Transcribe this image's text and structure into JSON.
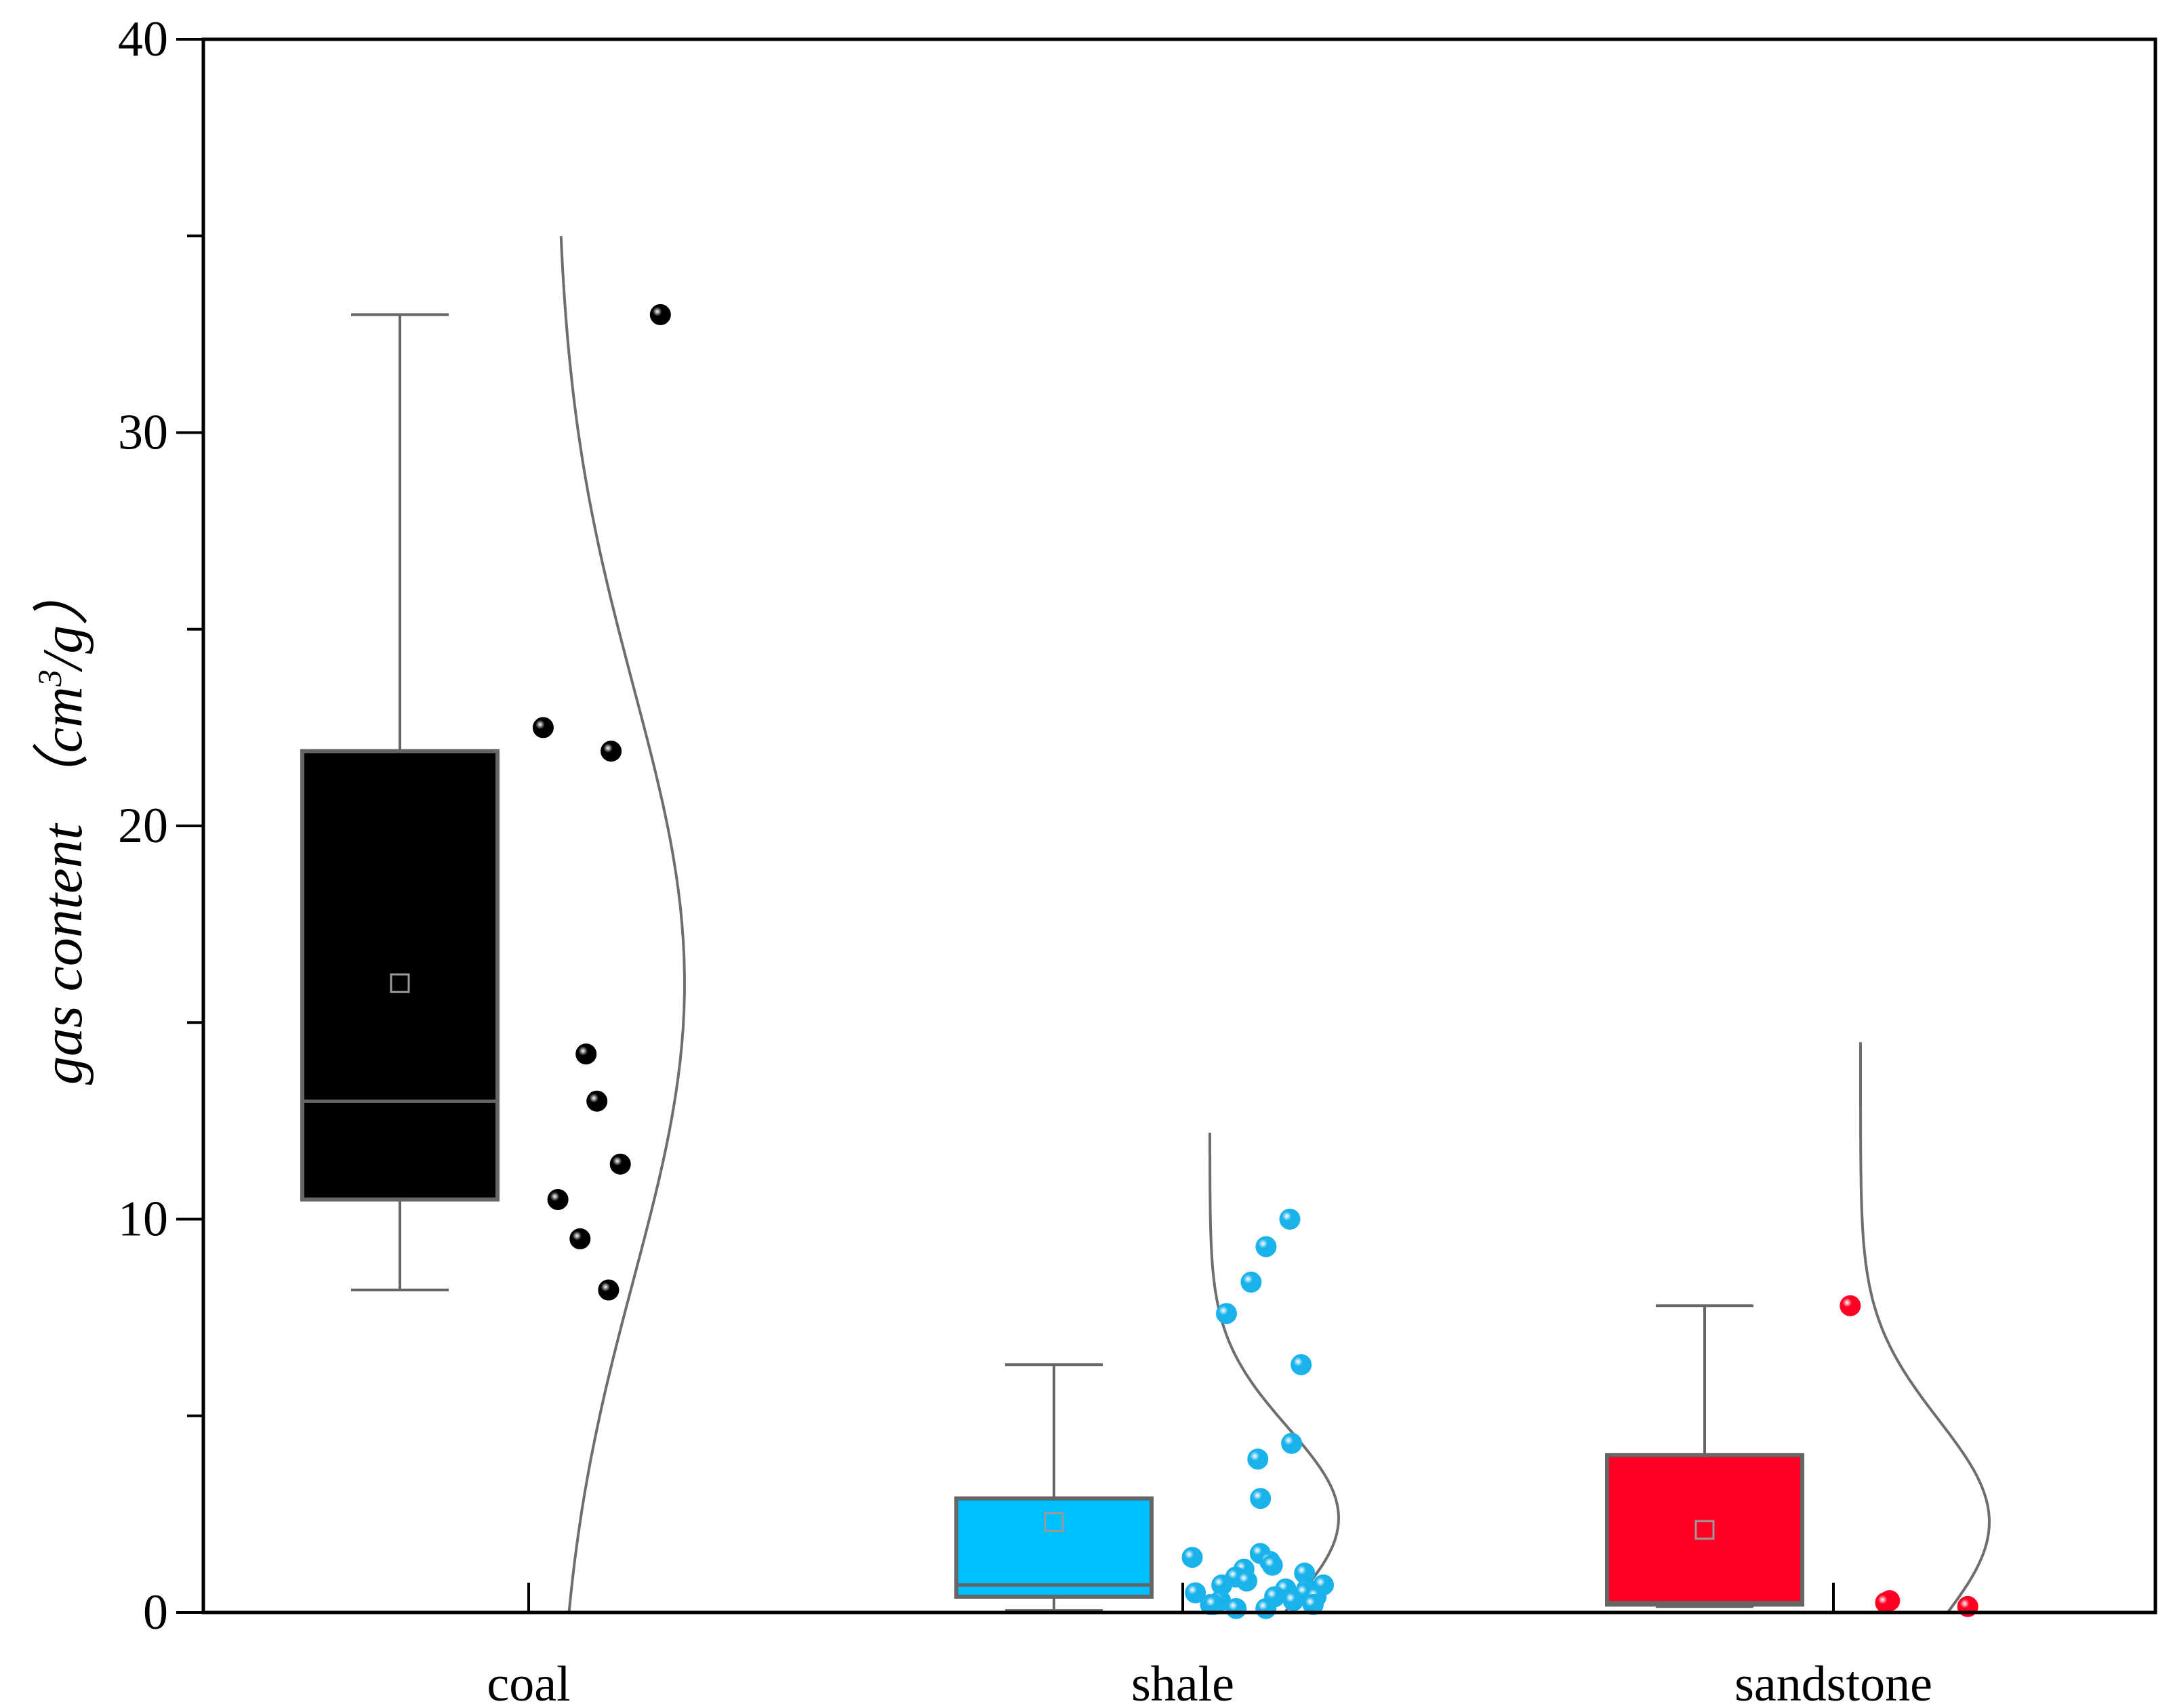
{
  "chart_data": {
    "type": "box",
    "ylabel": {
      "prefix": "gas content （cm",
      "superscript": "3",
      "suffix": "/g）"
    },
    "ylim": [
      0,
      40
    ],
    "yticks": [
      "0",
      "10",
      "20",
      "30",
      "40"
    ],
    "y_minor_step": 5,
    "grid": false,
    "legend": "none",
    "categories": [
      "coal",
      "shale",
      "sandstone"
    ],
    "series": [
      {
        "category": "coal",
        "color": "#000000",
        "point_color": "#000000",
        "box": {
          "whisker_low": 8.2,
          "q1": 10.5,
          "median": 13.0,
          "q3": 21.9,
          "whisker_high": 33.0,
          "mean": 16.0
        },
        "points": [
          33.0,
          22.5,
          21.9,
          14.2,
          13.0,
          11.4,
          10.5,
          9.5,
          8.2
        ],
        "curve": {
          "ymin": 0,
          "ymax": 35,
          "peak_y": 16.0,
          "sigma": 7.5
        }
      },
      {
        "category": "shale",
        "color": "#00bfff",
        "point_color": "#1ab2ea",
        "box": {
          "whisker_low": 0.05,
          "q1": 0.4,
          "median": 0.7,
          "q3": 2.9,
          "whisker_high": 6.3,
          "mean": 2.3
        },
        "points": [
          10.0,
          9.3,
          8.4,
          7.6,
          6.3,
          4.3,
          3.9,
          2.9,
          1.5,
          1.4,
          1.3,
          1.2,
          1.1,
          1.0,
          0.9,
          0.8,
          0.7,
          0.7,
          0.6,
          0.6,
          0.5,
          0.5,
          0.4,
          0.4,
          0.3,
          0.3,
          0.2,
          0.2,
          0.2,
          0.1,
          0.1
        ],
        "curve": {
          "ymin": 0,
          "ymax": 12.2,
          "peak_y": 2.4,
          "sigma": 2.3
        }
      },
      {
        "category": "sandstone",
        "color": "#ff0022",
        "point_color": "#ff0022",
        "box": {
          "whisker_low": 0.15,
          "q1": 0.2,
          "median": 0.25,
          "q3": 4.0,
          "whisker_high": 7.8,
          "mean": 2.1
        },
        "points": [
          7.8,
          0.3,
          0.25,
          0.15
        ],
        "curve": {
          "ymin": 0,
          "ymax": 14.5,
          "peak_y": 2.3,
          "sigma": 2.6
        }
      }
    ]
  }
}
